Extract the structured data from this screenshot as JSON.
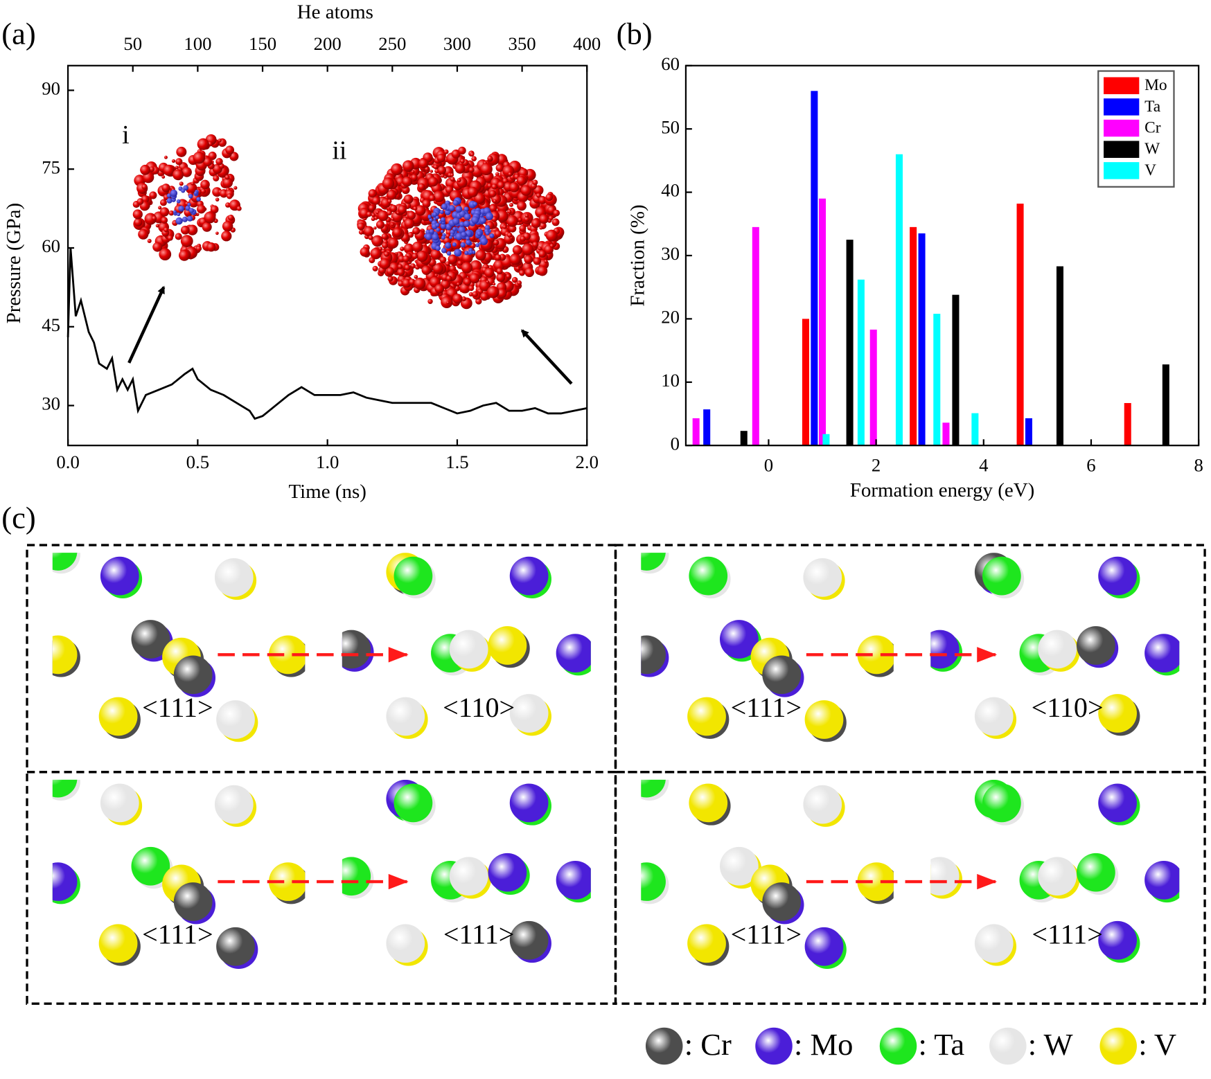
{
  "panels": {
    "a": "(a)",
    "b": "(b)",
    "c": "(c)"
  },
  "chart_data": [
    {
      "type": "line",
      "x_label": "Time (ns)",
      "y_label": "Pressure (GPa)",
      "x2_label": "He atoms",
      "xlim": [
        0,
        2.0
      ],
      "x2lim": [
        0,
        400
      ],
      "ylim": [
        22.4,
        94.7
      ],
      "xticks": [
        {
          "value": 0,
          "label": "0.0"
        },
        0.5,
        {
          "value": 1,
          "label": "1.0"
        },
        1.5,
        {
          "value": 2,
          "label": "2.0"
        }
      ],
      "x2ticks": [
        50,
        100,
        150,
        200,
        250,
        300,
        350,
        400
      ],
      "yticks": [
        30,
        45,
        60,
        75,
        90
      ],
      "annotations": [
        "i",
        "ii"
      ],
      "series": [
        {
          "color": "#000000",
          "x": [
            0,
            0.01,
            0.03,
            0.05,
            0.08,
            0.1,
            0.12,
            0.15,
            0.17,
            0.19,
            0.21,
            0.23,
            0.25,
            0.27,
            0.3,
            0.35,
            0.4,
            0.45,
            0.48,
            0.5,
            0.55,
            0.6,
            0.65,
            0.7,
            0.72,
            0.75,
            0.8,
            0.85,
            0.9,
            0.95,
            1.0,
            1.05,
            1.1,
            1.15,
            1.2,
            1.25,
            1.3,
            1.35,
            1.4,
            1.45,
            1.5,
            1.55,
            1.6,
            1.65,
            1.7,
            1.75,
            1.8,
            1.85,
            1.9,
            1.95,
            2.0
          ],
          "values": [
            43,
            60,
            47,
            50,
            44,
            42,
            38,
            37,
            39,
            33,
            35,
            33,
            35,
            29,
            32,
            33,
            34,
            36,
            37,
            35,
            33,
            32,
            30.5,
            29,
            27.5,
            28,
            30,
            32,
            33.5,
            32,
            32,
            32,
            32.5,
            31.5,
            31,
            30.5,
            30.5,
            30.5,
            30.5,
            29.5,
            28.5,
            29,
            30,
            30.5,
            29,
            29,
            29.5,
            28.5,
            28.5,
            29,
            29.5
          ]
        }
      ]
    },
    {
      "type": "bar",
      "x_label": "Formation energy (eV)",
      "y_label": "Fraction (%)",
      "xlim": [
        -1.54,
        8
      ],
      "ylim": [
        0,
        60
      ],
      "xticks": [
        0,
        2,
        4,
        6,
        8
      ],
      "yticks": [
        0,
        10,
        20,
        30,
        40,
        50,
        60
      ],
      "legend": "top-right",
      "series": [
        {
          "name": "Mo",
          "color": "#ff0000",
          "x": [
            0.69,
            2.69,
            4.68,
            6.68
          ],
          "values": [
            20,
            34.5,
            38.2,
            6.7
          ]
        },
        {
          "name": "Ta",
          "color": "#0000ff",
          "x": [
            -1.15,
            0.85,
            2.85,
            4.84
          ],
          "values": [
            5.7,
            56,
            33.5,
            4.3
          ]
        },
        {
          "name": "Cr",
          "color": "#ff00ff",
          "x": [
            -1.35,
            -0.24,
            1.0,
            1.95,
            3.3
          ],
          "values": [
            4.3,
            34.5,
            39,
            18.3,
            3.6
          ]
        },
        {
          "name": "W",
          "color": "#000000",
          "x": [
            -0.46,
            1.51,
            3.48,
            5.42,
            7.39
          ],
          "values": [
            2.3,
            32.5,
            23.8,
            28.3,
            12.8
          ]
        },
        {
          "name": "V",
          "color": "#00ffff",
          "x": [
            1.07,
            1.72,
            2.43,
            3.13,
            3.84
          ],
          "values": [
            1.8,
            26.2,
            46,
            20.8,
            5.1
          ]
        }
      ]
    }
  ],
  "panel_c": {
    "directions": [
      "<111>",
      "<110>",
      "<111>",
      "<110>",
      "<111>",
      "<111>",
      "<111>",
      "<111>"
    ],
    "legend": [
      {
        "label": ": Cr",
        "color": "#4d4d4d"
      },
      {
        "label": ": Mo",
        "color": "#4b1ed8"
      },
      {
        "label": ": Ta",
        "color": "#1ee61e"
      },
      {
        "label": ": W",
        "color": "#e6e6e6"
      },
      {
        "label": ": V",
        "color": "#f2e600"
      }
    ]
  }
}
